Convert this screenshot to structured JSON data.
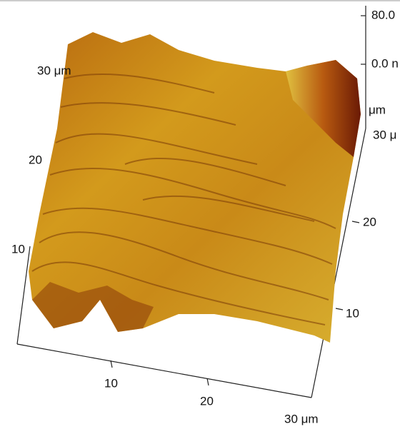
{
  "color_scale": {
    "max": "80.0",
    "min": "0.0 n",
    "unit": "μm",
    "corner": "30 μ"
  },
  "axes": {
    "left": [
      "30 μm",
      "20",
      "10"
    ],
    "bottom": [
      "10",
      "20",
      "30 μm"
    ],
    "right": [
      "20",
      "10"
    ]
  }
}
